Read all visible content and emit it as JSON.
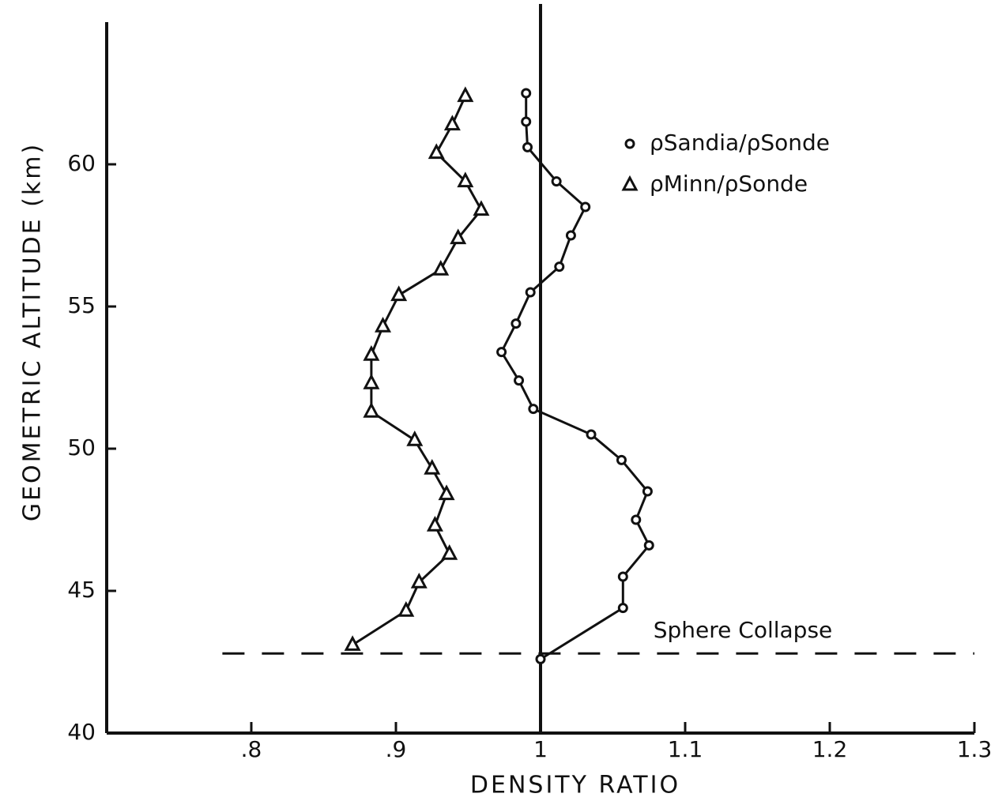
{
  "chart_data": {
    "type": "line",
    "xlabel": "DENSITY RATIO",
    "ylabel": "GEOMETRIC ALTITUDE (km)",
    "xlim": [
      0.7,
      1.3
    ],
    "xticks": [
      {
        "value": 0.8,
        "label": ".8"
      },
      {
        "value": 0.9,
        "label": ".9"
      },
      1,
      1.1,
      1.2,
      1.3
    ],
    "ylim": [
      40,
      65
    ],
    "yticks": [
      40,
      45,
      50,
      55,
      60
    ],
    "vline": 1,
    "hline": 42.8,
    "annotation": "Sphere Collapse",
    "series": [
      {
        "name": "ρSandia/ρSonde",
        "color": "#111111",
        "marker": "circle",
        "x": [
          1.0,
          1.057,
          1.057,
          1.075,
          1.066,
          1.074,
          1.056,
          1.035,
          0.995,
          0.985,
          0.973,
          0.983,
          0.993,
          1.013,
          1.021,
          1.031,
          1.011,
          0.991,
          0.99,
          0.99
        ],
        "values": [
          42.6,
          44.4,
          45.5,
          46.6,
          47.5,
          48.5,
          49.6,
          50.5,
          51.4,
          52.4,
          53.4,
          54.4,
          55.5,
          56.4,
          57.5,
          58.5,
          59.4,
          60.6,
          61.5,
          62.5
        ]
      },
      {
        "name": "ρMinn/ρSonde",
        "color": "#111111",
        "marker": "triangle",
        "x": [
          0.87,
          0.907,
          0.916,
          0.937,
          0.927,
          0.935,
          0.925,
          0.913,
          0.883,
          0.883,
          0.883,
          0.891,
          0.902,
          0.931,
          0.943,
          0.959,
          0.948,
          0.928,
          0.939,
          0.948
        ],
        "values": [
          43.1,
          44.3,
          45.3,
          46.3,
          47.3,
          48.4,
          49.3,
          50.3,
          51.3,
          52.3,
          53.3,
          54.3,
          55.4,
          56.3,
          57.4,
          58.4,
          59.4,
          60.4,
          61.4,
          62.4
        ]
      }
    ]
  }
}
